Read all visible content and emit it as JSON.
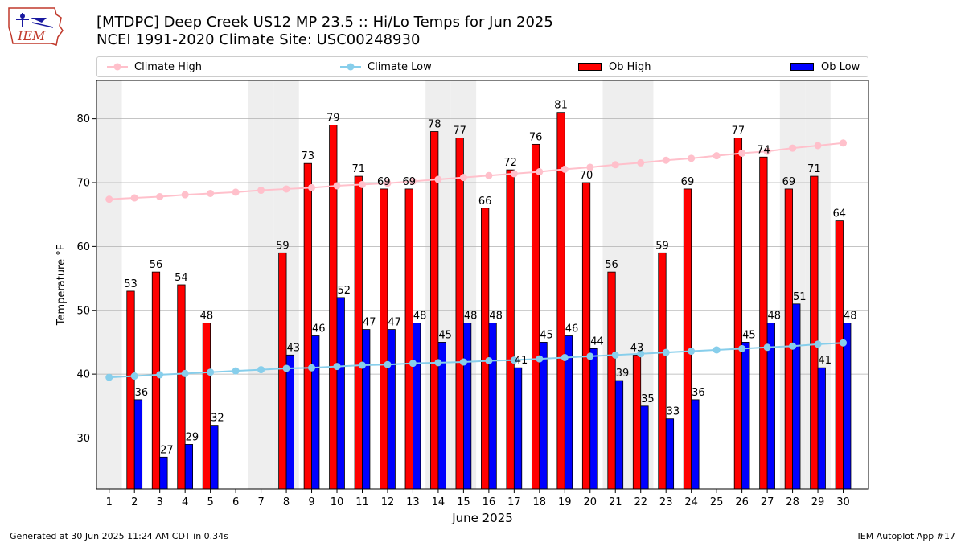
{
  "logo": {
    "text": "IEM"
  },
  "title": {
    "line1": "[MTDPC] Deep Creek US12 MP 23.5  :: Hi/Lo Temps for Jun 2025",
    "line2": "NCEI 1991-2020 Climate Site: USC00248930"
  },
  "colors": {
    "climate_high": "#ffc0cb",
    "climate_low": "#87ceeb",
    "ob_high": "#ff0000",
    "ob_low": "#0000ff",
    "weekend_band": "#eeeeee",
    "grid": "#b0b0b0"
  },
  "footer": {
    "left": "Generated at 30 Jun 2025 11:24 AM CDT in 0.34s",
    "right": "IEM Autoplot App #17"
  },
  "chart_data": {
    "type": "bar",
    "title": "[MTDPC] Deep Creek US12 MP 23.5  :: Hi/Lo Temps for Jun 2025",
    "subtitle": "NCEI 1991-2020 Climate Site: USC00248930",
    "xlabel": "June 2025",
    "ylabel": "Temperature °F",
    "ylim": [
      22,
      86
    ],
    "yticks": [
      30,
      40,
      50,
      60,
      70,
      80
    ],
    "grid": "horizontal",
    "legend_position": "top",
    "categories": [
      "1",
      "2",
      "3",
      "4",
      "5",
      "6",
      "7",
      "8",
      "9",
      "10",
      "11",
      "12",
      "13",
      "14",
      "15",
      "16",
      "17",
      "18",
      "19",
      "20",
      "21",
      "22",
      "23",
      "24",
      "25",
      "26",
      "27",
      "28",
      "29",
      "30"
    ],
    "weekend_days": [
      1,
      7,
      8,
      14,
      15,
      21,
      22,
      28,
      29
    ],
    "series": [
      {
        "name": "Climate High",
        "kind": "line",
        "values": [
          67.4,
          67.6,
          67.8,
          68.1,
          68.3,
          68.5,
          68.8,
          69.0,
          69.2,
          69.5,
          69.7,
          69.9,
          70.2,
          70.5,
          70.8,
          71.1,
          71.4,
          71.7,
          72.1,
          72.4,
          72.8,
          73.1,
          73.5,
          73.8,
          74.2,
          74.6,
          74.9,
          75.4,
          75.8,
          76.2
        ]
      },
      {
        "name": "Climate Low",
        "kind": "line",
        "values": [
          39.5,
          39.7,
          39.9,
          40.1,
          40.3,
          40.5,
          40.7,
          40.9,
          41.0,
          41.2,
          41.4,
          41.5,
          41.7,
          41.8,
          41.9,
          42.1,
          42.2,
          42.4,
          42.6,
          42.8,
          43.0,
          43.2,
          43.4,
          43.6,
          43.8,
          44.0,
          44.2,
          44.4,
          44.7,
          44.9
        ]
      },
      {
        "name": "Ob High",
        "kind": "bar",
        "values": [
          null,
          53,
          56,
          54,
          48,
          null,
          null,
          59,
          73,
          79,
          71,
          69,
          69,
          78,
          77,
          66,
          72,
          76,
          81,
          70,
          56,
          43,
          59,
          69,
          null,
          77,
          74,
          69,
          71,
          64
        ]
      },
      {
        "name": "Ob Low",
        "kind": "bar",
        "values": [
          null,
          36,
          27,
          29,
          32,
          null,
          null,
          43,
          46,
          52,
          47,
          47,
          48,
          45,
          48,
          48,
          41,
          45,
          46,
          44,
          39,
          35,
          33,
          36,
          null,
          45,
          48,
          51,
          41,
          48
        ]
      }
    ]
  }
}
